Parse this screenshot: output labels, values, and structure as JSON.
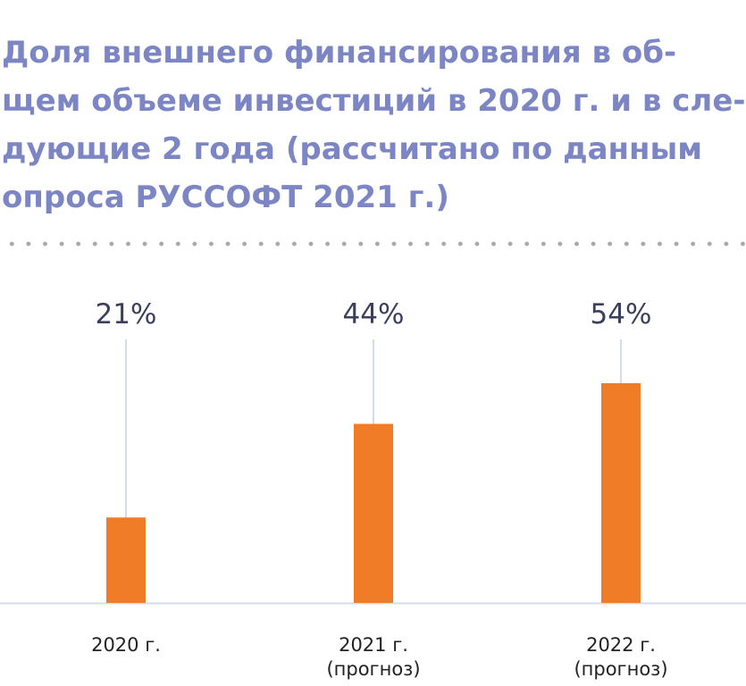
{
  "title_lines": [
    "Доля внешнего финансирования в об-",
    "щем объеме инвестиций в 2020 г. и в сле-",
    "дующие 2 года (рассчитано по данным",
    "опроса РУССОФТ 2021 г.)"
  ],
  "chart_data": {
    "type": "bar",
    "title": "Доля внешнего финансирования в общем объеме инвестиций в 2020 г. и в следующие 2 года (рассчитано по данным опроса РУССОФТ 2021 г.)",
    "categories": [
      [
        "2020 г."
      ],
      [
        "2021 г.",
        "(прогноз)"
      ],
      [
        "2022 г.",
        "(прогноз)"
      ]
    ],
    "values": [
      21,
      44,
      54
    ],
    "value_labels": [
      "21%",
      "44%",
      "54%"
    ],
    "ylim": [
      0,
      54
    ],
    "colors": {
      "bar": "#f07c27",
      "stem": "#d3dbee",
      "axis": "#d3dbee"
    }
  }
}
